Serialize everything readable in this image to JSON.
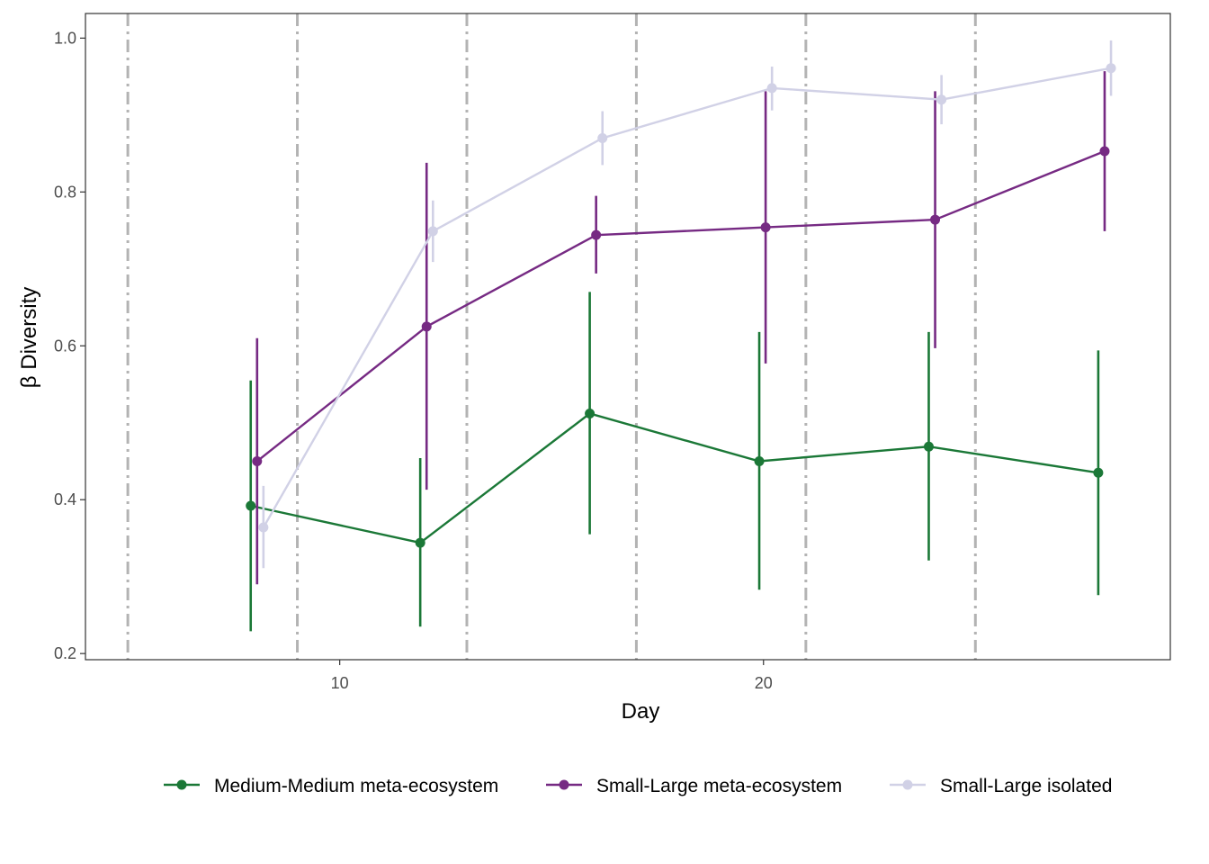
{
  "chart_data": {
    "type": "line",
    "xlabel": "Day",
    "ylabel": "β Diversity",
    "xlim": [
      4.0,
      29.6
    ],
    "ylim": [
      0.192,
      1.032
    ],
    "xticks": [
      10,
      20
    ],
    "xtick_labels": [
      "10",
      "20"
    ],
    "yticks": [
      0.2,
      0.4,
      0.6,
      0.8,
      1.0
    ],
    "ytick_labels": [
      "0.2",
      "0.4",
      "0.6",
      "0.8",
      "1.0"
    ],
    "grid": false,
    "legend_position": "bottom",
    "disturbance_days": [
      5,
      9,
      13,
      17,
      21,
      25
    ],
    "series": [
      {
        "name": "Medium-Medium meta-ecosystem",
        "color": "#1b7837",
        "x": [
          7.9,
          11.9,
          15.9,
          19.9,
          23.9,
          27.9
        ],
        "y": [
          0.392,
          0.344,
          0.512,
          0.45,
          0.469,
          0.435
        ],
        "ymin": [
          0.229,
          0.235,
          0.355,
          0.283,
          0.321,
          0.276
        ],
        "ymax": [
          0.555,
          0.454,
          0.67,
          0.618,
          0.618,
          0.594
        ]
      },
      {
        "name": "Small-Large meta-ecosystem",
        "color": "#762a83",
        "x": [
          8.05,
          12.05,
          16.05,
          20.05,
          24.05,
          28.05
        ],
        "y": [
          0.45,
          0.625,
          0.744,
          0.754,
          0.764,
          0.853
        ],
        "ymin": [
          0.29,
          0.413,
          0.694,
          0.577,
          0.597,
          0.749
        ],
        "ymax": [
          0.61,
          0.838,
          0.795,
          0.931,
          0.931,
          0.957
        ]
      },
      {
        "name": "Small-Large isolated",
        "color": "#d1d1e6",
        "x": [
          8.2,
          12.2,
          16.2,
          20.2,
          24.2,
          28.2
        ],
        "y": [
          0.364,
          0.749,
          0.87,
          0.935,
          0.92,
          0.961
        ],
        "ymin": [
          0.311,
          0.709,
          0.835,
          0.906,
          0.888,
          0.925
        ],
        "ymax": [
          0.418,
          0.789,
          0.905,
          0.963,
          0.952,
          0.997
        ]
      }
    ]
  }
}
